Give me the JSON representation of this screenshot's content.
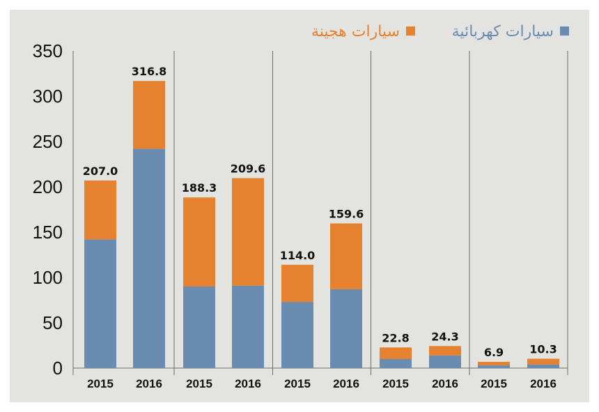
{
  "chart_data": {
    "type": "bar",
    "stacked": true,
    "categories": [
      "2015",
      "2016",
      "2015",
      "2016",
      "2015",
      "2016",
      "2015",
      "2016",
      "2015",
      "2016"
    ],
    "groups": 5,
    "totals_labels": [
      "207.0",
      "316.8",
      "188.3",
      "209.6",
      "114.0",
      "159.6",
      "22.8",
      "24.3",
      "6.9",
      "10.3"
    ],
    "series": [
      {
        "name": "سيارات كهربائية",
        "color": "#6a8cb0",
        "values": [
          142,
          242,
          90,
          91,
          73,
          87,
          10,
          14,
          3,
          4
        ]
      },
      {
        "name": "سيارات هجينة",
        "color": "#e6822f",
        "values": [
          65.0,
          74.8,
          98.3,
          118.6,
          41.0,
          72.6,
          12.8,
          10.3,
          3.9,
          6.3
        ]
      }
    ],
    "ylim": [
      0,
      350
    ],
    "yticks": [
      "0",
      "50",
      "100",
      "150",
      "200",
      "250",
      "300",
      "350"
    ],
    "grid": false,
    "legend_position": "top-right",
    "background": "#e3e3e0"
  }
}
